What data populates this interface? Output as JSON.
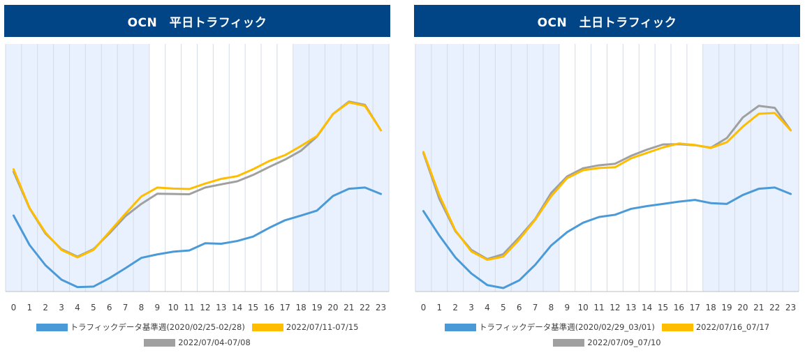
{
  "colors": {
    "title_bg": "#014586",
    "band": "#e8f1fd",
    "grid": "#d3dbe6",
    "base": "#4b9ad8",
    "yellow": "#ffbd00",
    "gray": "#a0a0a0"
  },
  "chart_data": [
    {
      "type": "line",
      "title": "OCN　平日トラフィック",
      "x": [
        0,
        1,
        2,
        3,
        4,
        5,
        6,
        7,
        8,
        9,
        10,
        11,
        12,
        13,
        14,
        15,
        16,
        17,
        18,
        19,
        20,
        21,
        22,
        23
      ],
      "xlim": [
        -0.5,
        23.5
      ],
      "ylim": [
        0,
        100
      ],
      "shaded_ranges": [
        [
          -0.5,
          8.5
        ],
        [
          17.5,
          23.5
        ]
      ],
      "series": [
        {
          "name": "トラフィックデータ基準週(2020/02/25-02/28)",
          "color": "#4b9ad8",
          "values": [
            30.7,
            18.8,
            10.6,
            4.8,
            1.8,
            2.0,
            5.4,
            9.4,
            13.6,
            15.0,
            16.1,
            16.6,
            19.5,
            19.3,
            20.4,
            22.2,
            25.7,
            28.8,
            30.7,
            32.7,
            38.6,
            41.5,
            42.0,
            39.4
          ]
        },
        {
          "name": "2022/07/11-07/15",
          "color": "#ffbd00",
          "values": [
            49.4,
            33.8,
            23.8,
            16.8,
            13.8,
            16.8,
            24.1,
            31.4,
            38.4,
            42.0,
            41.6,
            41.4,
            43.6,
            45.5,
            46.6,
            49.4,
            52.7,
            55.1,
            58.8,
            62.8,
            71.7,
            76.4,
            75.0,
            65.1
          ]
        },
        {
          "name": "2022/07/04-07/08",
          "color": "#a0a0a0",
          "values": [
            48.4,
            33.6,
            23.4,
            17.1,
            14.1,
            17.1,
            23.5,
            30.4,
            35.4,
            39.5,
            39.4,
            39.3,
            42.0,
            43.3,
            44.5,
            47.1,
            50.3,
            53.3,
            56.9,
            62.6,
            71.7,
            76.7,
            75.4,
            65.1
          ]
        }
      ]
    },
    {
      "type": "line",
      "title": "OCN　土日トラフィック",
      "x": [
        0,
        1,
        2,
        3,
        4,
        5,
        6,
        7,
        8,
        9,
        10,
        11,
        12,
        13,
        14,
        15,
        16,
        17,
        18,
        19,
        20,
        21,
        22,
        23
      ],
      "xlim": [
        -0.5,
        23.5
      ],
      "ylim": [
        0,
        100
      ],
      "shaded_ranges": [
        [
          -0.5,
          8.5
        ],
        [
          17.5,
          23.5
        ]
      ],
      "series": [
        {
          "name": "トラフィックデータ基準週(2020/02/29_03/01)",
          "color": "#4b9ad8",
          "values": [
            32.5,
            22.6,
            13.8,
            7.3,
            2.6,
            1.4,
            4.5,
            10.8,
            18.6,
            24.0,
            27.8,
            30.1,
            31.0,
            33.4,
            34.5,
            35.4,
            36.3,
            37.0,
            35.7,
            35.4,
            39.0,
            41.5,
            42.0,
            39.4
          ]
        },
        {
          "name": "2022/07/16_07/17",
          "color": "#ffbd00",
          "values": [
            56.4,
            38.9,
            24.7,
            16.2,
            12.8,
            14.1,
            21.0,
            29.0,
            38.5,
            45.8,
            49.0,
            49.9,
            50.2,
            53.8,
            56.0,
            58.2,
            59.8,
            59.2,
            58.0,
            60.3,
            66.6,
            71.8,
            72.1,
            65.1
          ]
        },
        {
          "name": "2022/07/09_07/10",
          "color": "#a0a0a0",
          "values": [
            56.0,
            37.4,
            24.4,
            16.8,
            13.1,
            15.1,
            21.9,
            29.3,
            39.8,
            46.5,
            49.8,
            51.0,
            51.6,
            54.8,
            57.3,
            59.4,
            59.5,
            59.1,
            58.1,
            62.0,
            70.3,
            75.0,
            74.2,
            65.1
          ]
        }
      ]
    }
  ]
}
